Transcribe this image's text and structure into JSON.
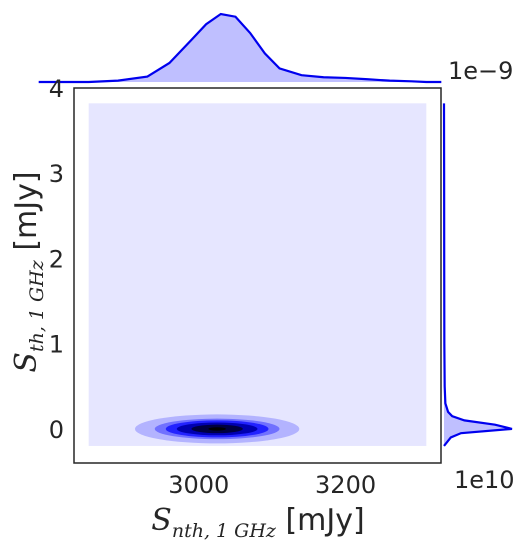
{
  "chart_data": {
    "type": "kde-joint",
    "x_axis": {
      "label_main": "S",
      "label_sub": "nth, 1 GHz",
      "label_unit": " [mJy]",
      "offset_text": "1e10",
      "range": [
        2830,
        3330
      ],
      "ticks": [
        {
          "value": 3000,
          "label": "3000"
        },
        {
          "value": 3200,
          "label": "3200"
        }
      ]
    },
    "y_axis": {
      "label_main": "S",
      "label_sub": "th, 1 GHz",
      "label_unit": " [mJy]",
      "offset_text": "1e−9",
      "range": [
        -0.4,
        4.0
      ],
      "ticks": [
        {
          "value": 0,
          "label": "0"
        },
        {
          "value": 1,
          "label": "1"
        },
        {
          "value": 2,
          "label": "2"
        },
        {
          "value": 3,
          "label": "3"
        },
        {
          "value": 4,
          "label": "4"
        }
      ]
    },
    "joint_kde": {
      "peak_x": 3025,
      "peak_y": 0.0,
      "fill_extent": {
        "x": [
          2850,
          3310
        ],
        "y": [
          -0.2,
          3.82
        ]
      },
      "levels": [
        {
          "level": 1,
          "half_width_x": 112,
          "half_height_y": 0.17,
          "color": "#b3b3ff"
        },
        {
          "level": 2,
          "half_width_x": 85,
          "half_height_y": 0.12,
          "color": "#7070ff"
        },
        {
          "level": 3,
          "half_width_x": 70,
          "half_height_y": 0.1,
          "color": "#2222ff"
        },
        {
          "level": 4,
          "half_width_x": 55,
          "half_height_y": 0.075,
          "color": "#0000b0"
        },
        {
          "level": 5,
          "half_width_x": 35,
          "half_height_y": 0.05,
          "color": "#000040"
        },
        {
          "level": 6,
          "half_width_x": 12,
          "half_height_y": 0.02,
          "color": "#000000"
        }
      ]
    },
    "x_marginal": {
      "x": [
        2850,
        2890,
        2930,
        2960,
        2990,
        3010,
        3030,
        3050,
        3070,
        3090,
        3110,
        3140,
        3170,
        3200,
        3230,
        3260,
        3290,
        3310
      ],
      "density": [
        0.0,
        0.02,
        0.08,
        0.28,
        0.62,
        0.85,
        1.0,
        0.96,
        0.72,
        0.42,
        0.2,
        0.1,
        0.07,
        0.06,
        0.04,
        0.02,
        0.01,
        0.0
      ]
    },
    "y_marginal": {
      "y": [
        -0.2,
        -0.1,
        -0.05,
        0.0,
        0.05,
        0.1,
        0.15,
        0.2,
        0.3,
        0.5,
        1.0,
        2.0,
        3.0,
        3.82
      ],
      "density": [
        0.0,
        0.1,
        0.25,
        1.0,
        0.75,
        0.3,
        0.12,
        0.06,
        0.02,
        0.01,
        0.005,
        0.003,
        0.002,
        0.0
      ]
    },
    "colors": {
      "background_fill": "#e6e6ff",
      "marginal_fill": "#bfbfff",
      "marginal_line": "#0000ee",
      "frame": "#262626"
    },
    "grid": false,
    "legend": "none"
  }
}
